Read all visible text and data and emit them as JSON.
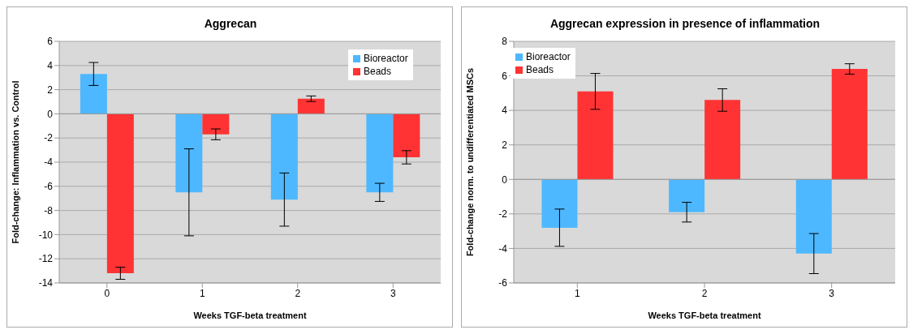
{
  "chart_data": [
    {
      "type": "bar",
      "title": "Aggrecan",
      "xlabel": "Weeks TGF-beta treatment",
      "ylabel": "Fold-change: Inflammation vs. Control",
      "categories": [
        "0",
        "1",
        "2",
        "3"
      ],
      "series": [
        {
          "name": "Bioreactor",
          "color": "#4db8ff",
          "values": [
            3.3,
            -6.5,
            -7.1,
            -6.5
          ],
          "errors": [
            0.95,
            3.6,
            2.2,
            0.75
          ]
        },
        {
          "name": "Beads",
          "color": "#ff3333",
          "values": [
            -13.2,
            -1.7,
            1.25,
            -3.6
          ],
          "errors": [
            0.5,
            0.45,
            0.23,
            0.55
          ]
        }
      ],
      "ylim": [
        -14,
        6
      ],
      "yticks": [
        -14,
        -12,
        -10,
        -8,
        -6,
        -4,
        -2,
        0,
        2,
        4,
        6
      ],
      "grid": "y",
      "legend": "top right"
    },
    {
      "type": "bar",
      "title": "Aggrecan expression in presence of inflammation",
      "xlabel": "Weeks TGF-beta treatment",
      "ylabel": "Fold-change norm. to undifferentiated MSCs",
      "categories": [
        "1",
        "2",
        "3"
      ],
      "series": [
        {
          "name": "Bioreactor",
          "color": "#4db8ff",
          "values": [
            -2.8,
            -1.9,
            -4.3
          ],
          "errors": [
            1.08,
            0.57,
            1.16
          ]
        },
        {
          "name": "Beads",
          "color": "#ff3333",
          "values": [
            5.1,
            4.6,
            6.4
          ],
          "errors": [
            1.04,
            0.65,
            0.3
          ]
        }
      ],
      "ylim": [
        -6,
        8
      ],
      "yticks": [
        -6,
        -4,
        -2,
        0,
        2,
        4,
        6,
        8
      ],
      "grid": "y",
      "legend": "top left"
    }
  ]
}
